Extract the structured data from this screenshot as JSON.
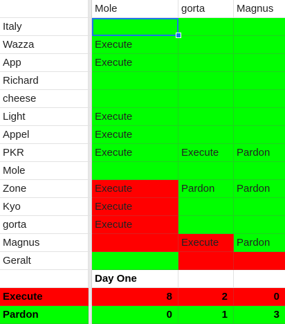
{
  "header": {
    "a": "",
    "b": "Mole",
    "c": "gorta",
    "d": "Magnus"
  },
  "rows": [
    {
      "name": "Italy",
      "b": "",
      "c": "",
      "d": "",
      "bc": "green",
      "cc": "green",
      "dc": "green"
    },
    {
      "name": "Wazza",
      "b": "Execute",
      "c": "",
      "d": "",
      "bc": "green",
      "cc": "green",
      "dc": "green"
    },
    {
      "name": "App",
      "b": "Execute",
      "c": "",
      "d": "",
      "bc": "green",
      "cc": "green",
      "dc": "green"
    },
    {
      "name": "Richard",
      "b": "",
      "c": "",
      "d": "",
      "bc": "green",
      "cc": "green",
      "dc": "green"
    },
    {
      "name": "cheese",
      "b": "",
      "c": "",
      "d": "",
      "bc": "green",
      "cc": "green",
      "dc": "green"
    },
    {
      "name": "Light",
      "b": "Execute",
      "c": "",
      "d": "",
      "bc": "green",
      "cc": "green",
      "dc": "green"
    },
    {
      "name": "Appel",
      "b": "Execute",
      "c": "",
      "d": "",
      "bc": "green",
      "cc": "green",
      "dc": "green"
    },
    {
      "name": "PKR",
      "b": "Execute",
      "c": "Execute",
      "d": "Pardon",
      "bc": "green",
      "cc": "green",
      "dc": "green"
    },
    {
      "name": "Mole",
      "b": "",
      "c": "",
      "d": "",
      "bc": "green",
      "cc": "green",
      "dc": "green"
    },
    {
      "name": "Zone",
      "b": "Execute",
      "c": "Pardon",
      "d": "Pardon",
      "bc": "red",
      "cc": "green",
      "dc": "green"
    },
    {
      "name": "Kyo",
      "b": "Execute",
      "c": "",
      "d": "",
      "bc": "red",
      "cc": "green",
      "dc": "green"
    },
    {
      "name": "gorta",
      "b": "Execute",
      "c": "",
      "d": "",
      "bc": "red",
      "cc": "green",
      "dc": "green"
    },
    {
      "name": "Magnus",
      "b": "",
      "c": "Execute",
      "d": "Pardon",
      "bc": "red",
      "cc": "red",
      "dc": "green"
    },
    {
      "name": "Geralt",
      "b": "",
      "c": "",
      "d": "",
      "bc": "green",
      "cc": "red",
      "dc": "red"
    }
  ],
  "day_label": "Day One",
  "totals": [
    {
      "label": "Execute",
      "b": "8",
      "c": "2",
      "d": "0",
      "color": "red"
    },
    {
      "label": "Pardon",
      "b": "0",
      "c": "1",
      "d": "3",
      "color": "green"
    }
  ],
  "colors": {
    "green": "#00ff00",
    "red": "#ff0000",
    "selection": "#1a73e8"
  }
}
